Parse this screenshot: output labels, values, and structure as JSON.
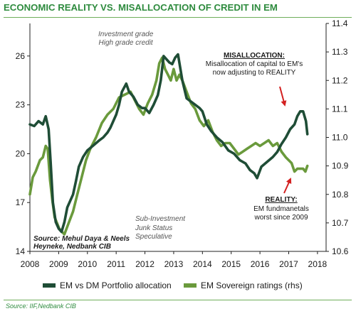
{
  "chart_data": {
    "type": "line",
    "title": "ECONOMIC REALITY VS. MISALLOCATION OF CREDIT IN EM",
    "x_ticks": [
      "2008",
      "2009",
      "2010",
      "2011",
      "2012",
      "2013",
      "2014",
      "2015",
      "2016",
      "2017",
      "2018"
    ],
    "xlim": [
      2008,
      2018.3
    ],
    "y_left": {
      "ylim": [
        14,
        28
      ],
      "ticks": [
        "14",
        "17",
        "20",
        "23",
        "26"
      ]
    },
    "y_right": {
      "ylim": [
        10.6,
        11.4
      ],
      "ticks": [
        "10.6",
        "10.7",
        "10.8",
        "10.9",
        "11.0",
        "11.1",
        "11.2",
        "11.3",
        "11.4"
      ]
    },
    "grid": false,
    "legend_position": "bottom",
    "series": [
      {
        "name": "EM vs DM Portfolio allocation",
        "axis": "left",
        "color": "#1f4d36",
        "x": [
          2008.0,
          2008.15,
          2008.3,
          2008.45,
          2008.55,
          2008.65,
          2008.72,
          2008.8,
          2008.9,
          2009.0,
          2009.1,
          2009.2,
          2009.3,
          2009.5,
          2009.6,
          2009.7,
          2009.85,
          2010.0,
          2010.2,
          2010.4,
          2010.55,
          2010.7,
          2010.8,
          2010.9,
          2011.0,
          2011.1,
          2011.2,
          2011.35,
          2011.45,
          2011.6,
          2011.75,
          2011.9,
          2012.0,
          2012.15,
          2012.3,
          2012.45,
          2012.55,
          2012.65,
          2012.75,
          2012.85,
          2012.95,
          2013.05,
          2013.15,
          2013.3,
          2013.45,
          2013.6,
          2013.75,
          2013.9,
          2014.0,
          2014.15,
          2014.3,
          2014.5,
          2014.7,
          2014.9,
          2015.1,
          2015.3,
          2015.5,
          2015.65,
          2015.8,
          2015.9,
          2016.05,
          2016.25,
          2016.45,
          2016.6,
          2016.75,
          2016.9,
          2017.05,
          2017.2,
          2017.3,
          2017.4,
          2017.5,
          2017.6,
          2017.65
        ],
        "y": [
          21.8,
          21.7,
          22.0,
          21.8,
          22.3,
          21.5,
          19.5,
          17.0,
          15.8,
          15.4,
          15.2,
          15.8,
          16.7,
          17.5,
          18.3,
          19.2,
          19.8,
          20.2,
          20.5,
          20.8,
          21.0,
          21.3,
          21.6,
          22.0,
          22.4,
          23.0,
          23.8,
          24.3,
          23.8,
          23.5,
          23.0,
          22.8,
          22.8,
          22.5,
          23.0,
          23.6,
          24.5,
          26.0,
          25.8,
          25.6,
          25.5,
          25.9,
          26.1,
          24.5,
          23.4,
          23.2,
          23.0,
          22.8,
          22.6,
          21.8,
          21.4,
          21.0,
          20.7,
          20.2,
          20.0,
          19.6,
          19.4,
          19.0,
          18.8,
          18.5,
          19.2,
          19.5,
          19.8,
          20.1,
          20.6,
          21.0,
          21.5,
          21.8,
          22.3,
          22.6,
          22.6,
          22.0,
          21.2
        ]
      },
      {
        "name": "EM Sovereign ratings (rhs)",
        "axis": "right",
        "color": "#6a9a3c",
        "x": [
          2008.0,
          2008.1,
          2008.2,
          2008.35,
          2008.45,
          2008.55,
          2008.62,
          2008.7,
          2008.78,
          2008.86,
          2008.94,
          2009.02,
          2009.1,
          2009.2,
          2009.35,
          2009.5,
          2009.65,
          2009.8,
          2009.95,
          2010.1,
          2010.3,
          2010.5,
          2010.7,
          2010.9,
          2011.1,
          2011.3,
          2011.5,
          2011.65,
          2011.8,
          2011.95,
          2012.1,
          2012.25,
          2012.4,
          2012.5,
          2012.6,
          2012.7,
          2012.8,
          2012.9,
          2013.0,
          2013.1,
          2013.2,
          2013.3,
          2013.45,
          2013.6,
          2013.75,
          2013.9,
          2014.05,
          2014.2,
          2014.35,
          2014.5,
          2014.65,
          2014.8,
          2014.95,
          2015.1,
          2015.25,
          2015.4,
          2015.55,
          2015.7,
          2015.85,
          2016.0,
          2016.15,
          2016.3,
          2016.45,
          2016.6,
          2016.75,
          2016.9,
          2017.0,
          2017.1,
          2017.2,
          2017.3,
          2017.4,
          2017.5,
          2017.58,
          2017.65
        ],
        "y": [
          10.8,
          10.86,
          10.88,
          10.92,
          10.93,
          10.97,
          10.96,
          10.85,
          10.78,
          10.72,
          10.7,
          10.68,
          10.67,
          10.66,
          10.7,
          10.74,
          10.8,
          10.86,
          10.92,
          10.96,
          11.0,
          11.05,
          11.08,
          11.1,
          11.14,
          11.15,
          11.16,
          11.13,
          11.1,
          11.08,
          11.12,
          11.15,
          11.2,
          11.26,
          11.28,
          11.24,
          11.22,
          11.2,
          11.24,
          11.2,
          11.22,
          11.2,
          11.16,
          11.12,
          11.1,
          11.06,
          11.04,
          11.06,
          11.02,
          10.99,
          10.97,
          10.98,
          10.98,
          10.96,
          10.94,
          10.95,
          10.96,
          10.97,
          10.98,
          10.97,
          10.98,
          10.99,
          10.97,
          10.98,
          10.95,
          10.93,
          10.92,
          10.91,
          10.88,
          10.89,
          10.89,
          10.89,
          10.88,
          10.9
        ]
      }
    ],
    "annotations": {
      "investment_grade": [
        "Investment grade",
        "High grade credit"
      ],
      "sub_investment": [
        "Sub-Investment",
        "Junk Status",
        "Speculative"
      ],
      "source_inset": [
        "Source: Mehul Daya & Neels",
        "Heyneke, Nedbank CIB"
      ],
      "misallocation_title": "MISALLOCATION:",
      "misallocation_text": [
        "Misallocation of capital to EM's",
        "now adjusting to REALITY"
      ],
      "reality_title": "REALITY:",
      "reality_text": [
        "EM fundmanetals",
        "worst since 2009"
      ]
    }
  },
  "footer": {
    "source": "Source: IIF,Nedbank CIB"
  }
}
